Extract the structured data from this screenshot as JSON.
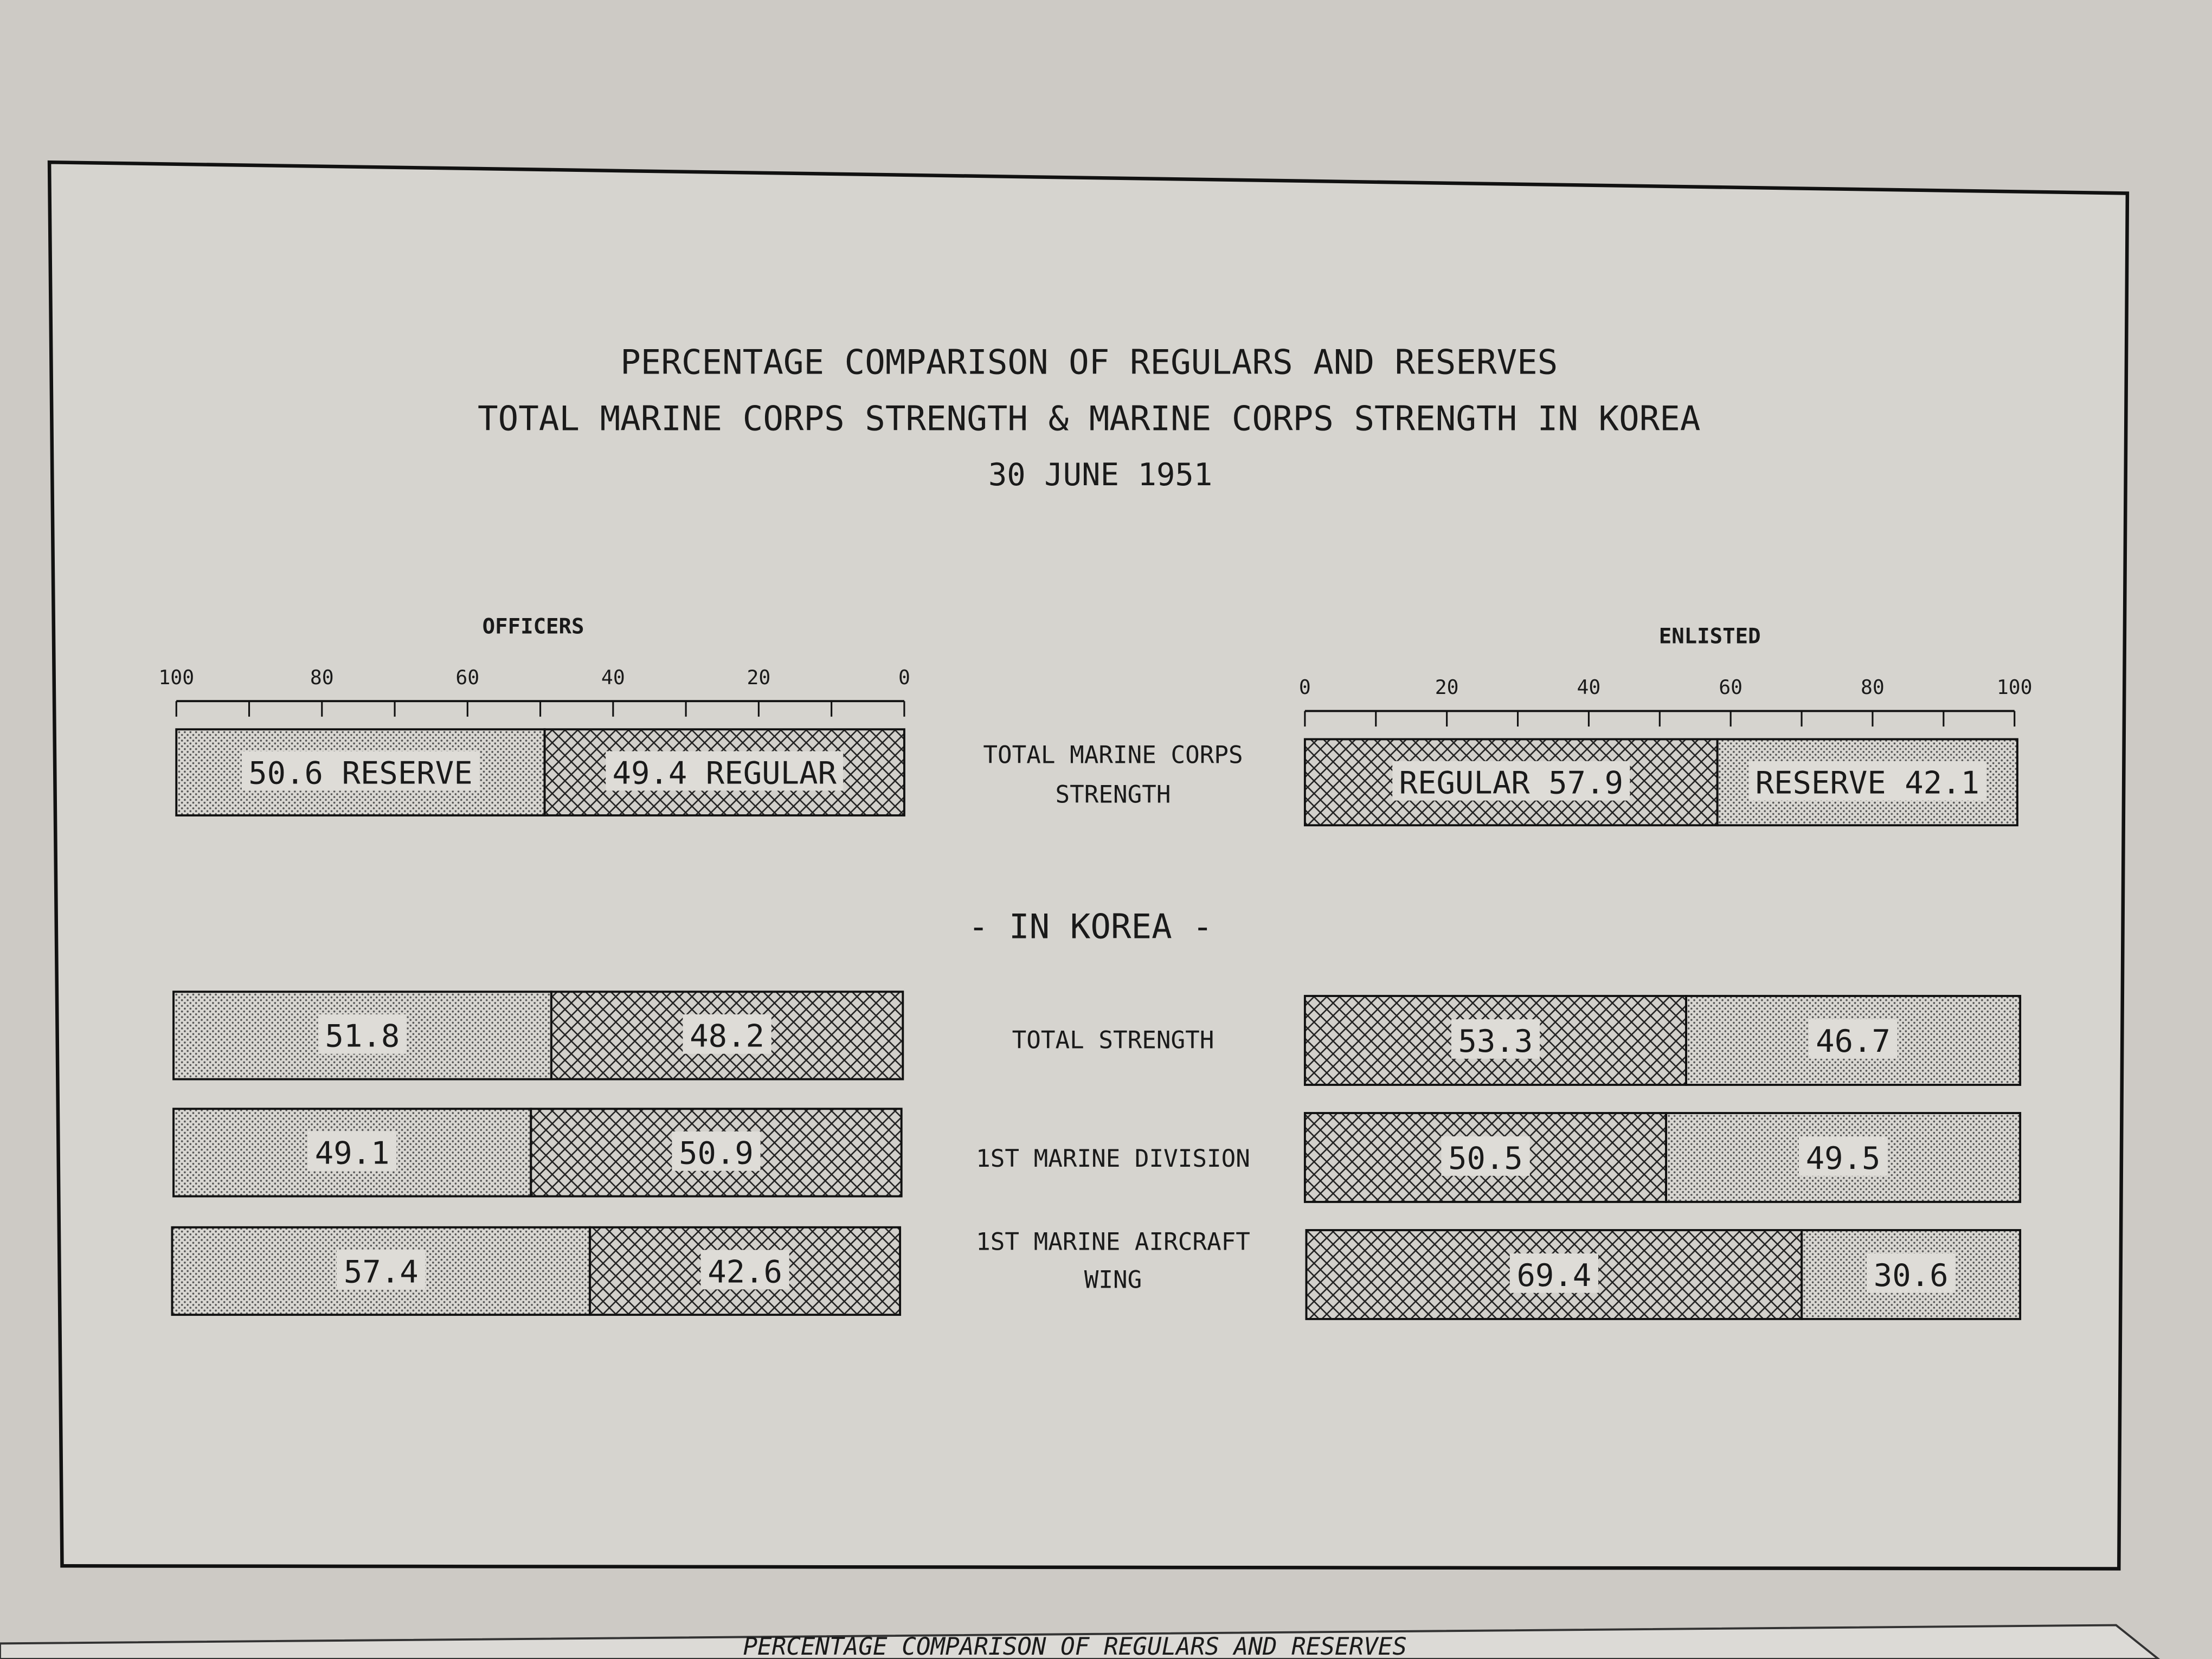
{
  "chart_data": {
    "type": "bar",
    "orientation": "horizontal-stacked",
    "title": [
      "PERCENTAGE COMPARISON OF REGULARS AND RESERVES",
      "TOTAL MARINE CORPS STRENGTH & MARINE CORPS STRENGTH IN KOREA",
      "30 JUNE 1951"
    ],
    "section_label": "- IN KOREA -",
    "panels": [
      {
        "name": "OFFICERS",
        "ticks": [
          "100",
          "80",
          "60",
          "40",
          "20",
          "0"
        ],
        "xlim": [
          100,
          0
        ],
        "order": [
          "reserve",
          "regular"
        ]
      },
      {
        "name": "ENLISTED",
        "ticks": [
          "0",
          "20",
          "40",
          "60",
          "80",
          "100"
        ],
        "xlim": [
          0,
          100
        ],
        "order": [
          "regular",
          "reserve"
        ]
      }
    ],
    "categories": [
      {
        "label": [
          "TOTAL MARINE CORPS",
          "STRENGTH"
        ],
        "officers": {
          "reserve": 50.6,
          "regular": 49.4,
          "reserve_label": "50.6 RESERVE",
          "regular_label": "49.4 REGULAR"
        },
        "enlisted": {
          "regular": 57.9,
          "reserve": 42.1,
          "regular_label": "REGULAR 57.9",
          "reserve_label": "RESERVE 42.1"
        }
      },
      {
        "label": [
          "TOTAL STRENGTH"
        ],
        "officers": {
          "reserve": 51.8,
          "regular": 48.2,
          "reserve_label": "51.8",
          "regular_label": "48.2"
        },
        "enlisted": {
          "regular": 53.3,
          "reserve": 46.7,
          "regular_label": "53.3",
          "reserve_label": "46.7"
        }
      },
      {
        "label": [
          "1ST MARINE DIVISION"
        ],
        "officers": {
          "reserve": 49.1,
          "regular": 50.9,
          "reserve_label": "49.1",
          "regular_label": "50.9"
        },
        "enlisted": {
          "regular": 50.5,
          "reserve": 49.5,
          "regular_label": "50.5",
          "reserve_label": "49.5"
        }
      },
      {
        "label": [
          "1ST MARINE AIRCRAFT",
          "WING"
        ],
        "officers": {
          "reserve": 57.4,
          "regular": 42.6,
          "reserve_label": "57.4",
          "regular_label": "42.6"
        },
        "enlisted": {
          "regular": 69.4,
          "reserve": 30.6,
          "regular_label": "69.4",
          "reserve_label": "30.6"
        }
      }
    ],
    "patterns": {
      "regular": "crosshatch",
      "reserve": "stipple"
    },
    "colors": {
      "paper": "#d6d4cf",
      "ink": "#1a1a1a",
      "background": "#c9c6c1"
    }
  },
  "next_page_title": "PERCENTAGE COMPARISON OF REGULARS AND RESERVES"
}
